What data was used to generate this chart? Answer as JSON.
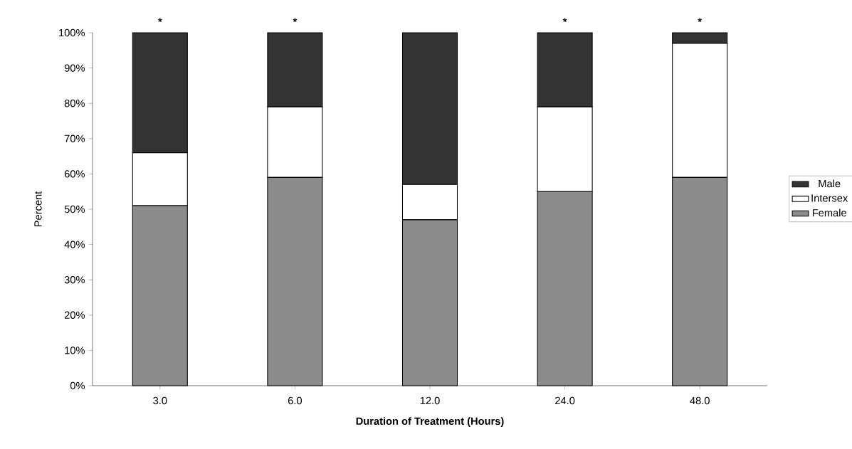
{
  "chart_data": {
    "type": "bar",
    "stacked": true,
    "xlabel": "Duration of Treatment (Hours)",
    "ylabel": "Percent",
    "categories": [
      "3.0",
      "6.0",
      "12.0",
      "24.0",
      "48.0"
    ],
    "series": [
      {
        "name": "Female",
        "color": "#8c8c8c",
        "values": [
          51,
          59,
          47,
          55,
          59
        ]
      },
      {
        "name": "Intersex",
        "color": "#ffffff",
        "values": [
          15,
          20,
          10,
          24,
          38
        ]
      },
      {
        "name": "Male",
        "color": "#333333",
        "values": [
          34,
          21,
          43,
          21,
          3
        ]
      }
    ],
    "ylim": [
      0,
      100
    ],
    "yticks": [
      {
        "value": 0,
        "label": "0%"
      },
      {
        "value": 10,
        "label": "10%"
      },
      {
        "value": 20,
        "label": "20%"
      },
      {
        "value": 30,
        "label": "30%"
      },
      {
        "value": 40,
        "label": "40%"
      },
      {
        "value": 50,
        "label": "50%"
      },
      {
        "value": 60,
        "label": "60%"
      },
      {
        "value": 70,
        "label": "70%"
      },
      {
        "value": 80,
        "label": "80%"
      },
      {
        "value": 90,
        "label": "90%"
      },
      {
        "value": 100,
        "label": "100%"
      }
    ],
    "annotations": [
      {
        "text": "*",
        "x": "3.0",
        "y": 100
      },
      {
        "text": "*",
        "x": "6.0",
        "y": 100
      },
      {
        "text": "*",
        "x": "24.0",
        "y": 100
      },
      {
        "text": "*",
        "x": "48.0",
        "y": 100
      }
    ],
    "legend": "right",
    "grid": false
  }
}
